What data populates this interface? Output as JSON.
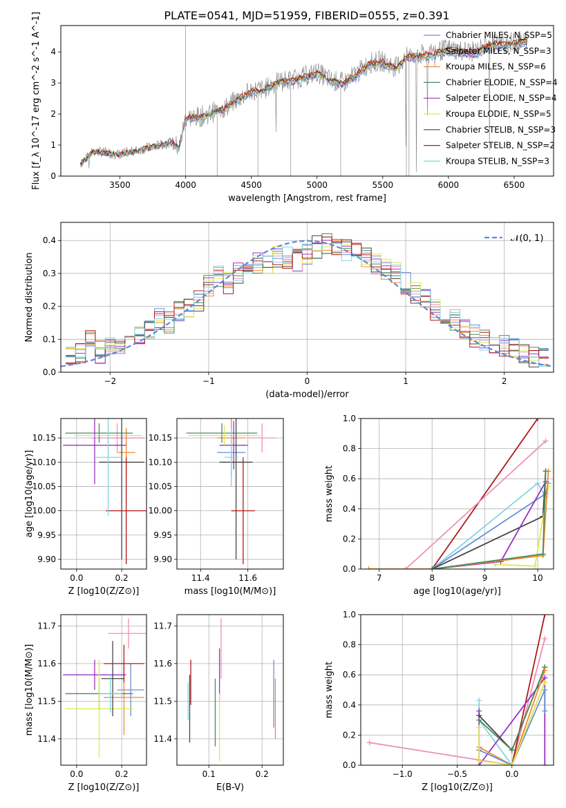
{
  "figure": {
    "title": "PLATE=0541, MJD=51959, FIBERID=0555, z=0.391"
  },
  "legend_entries": [
    {
      "name": "Chabrier MILES, N_SSP=5",
      "color": "#6a8fd6"
    },
    {
      "name": "Salpeter MILES, N_SSP=3",
      "color": "#f08fb8"
    },
    {
      "name": "Kroupa MILES, N_SSP=6",
      "color": "#f08a30"
    },
    {
      "name": "Chabrier ELODIE, N_SSP=4",
      "color": "#4a8a5a"
    },
    {
      "name": "Salpeter ELODIE, N_SSP=4",
      "color": "#9b30c0"
    },
    {
      "name": "Kroupa ELODIE, N_SSP=5",
      "color": "#dfe84a"
    },
    {
      "name": "Chabrier STELIB, N_SSP=3",
      "color": "#444444"
    },
    {
      "name": "Salpeter STELIB, N_SSP=2",
      "color": "#b01818"
    },
    {
      "name": "Kroupa STELIB, N_SSP=3",
      "color": "#7fd6e0"
    }
  ],
  "chart_data": [
    {
      "id": "spectrum",
      "type": "line",
      "xlabel": "wavelength [Angstrom, rest frame]",
      "ylabel": "Flux [f_λ 10^-17 erg cm^-2 s^-1 A^-1]",
      "xlim": [
        3050,
        6800
      ],
      "ylim": [
        0,
        4.85
      ],
      "xticks": [
        3500,
        4000,
        4500,
        5000,
        5500,
        6000,
        6500
      ],
      "yticks": [
        0,
        1,
        2,
        3,
        4
      ],
      "grid": false,
      "legend_position": "top-right",
      "data_curve": {
        "x": [
          3200,
          3300,
          3400,
          3500,
          3600,
          3700,
          3800,
          3900,
          3950,
          4000,
          4100,
          4200,
          4300,
          4400,
          4500,
          4600,
          4700,
          4800,
          4900,
          5000,
          5100,
          5200,
          5300,
          5400,
          5500,
          5600,
          5700,
          5800,
          5900,
          6000,
          6100,
          6200,
          6300,
          6400,
          6500,
          6600
        ],
        "y": [
          0.4,
          0.8,
          0.75,
          0.7,
          0.8,
          0.9,
          1.0,
          1.1,
          0.9,
          1.9,
          1.9,
          2.05,
          2.2,
          2.5,
          2.75,
          2.8,
          3.05,
          3.1,
          3.2,
          3.35,
          3.1,
          3.0,
          3.3,
          3.65,
          3.7,
          3.5,
          3.9,
          3.9,
          4.0,
          4.1,
          4.05,
          4.0,
          4.25,
          4.3,
          4.3,
          4.4
        ]
      }
    },
    {
      "id": "residuals",
      "type": "line",
      "xlabel": "(data-model)/error",
      "ylabel": "Normed distribution",
      "xlim": [
        -2.5,
        2.5
      ],
      "ylim": [
        0,
        0.455
      ],
      "xticks": [
        -2,
        -1,
        0,
        1,
        2
      ],
      "yticks": [
        0.0,
        0.1,
        0.2,
        0.3,
        0.4
      ],
      "grid": true,
      "legend_position": "top-right",
      "legend": [
        "𝒩(0, 1)"
      ],
      "gaussian": {
        "mean": 0,
        "sigma": 1,
        "color": "#5b88d6"
      },
      "hist_bins": [
        -2.4,
        -2.3,
        -2.2,
        -2.1,
        -2.0,
        -1.9,
        -1.8,
        -1.7,
        -1.6,
        -1.5,
        -1.4,
        -1.3,
        -1.2,
        -1.1,
        -1.0,
        -0.9,
        -0.8,
        -0.7,
        -0.6,
        -0.5,
        -0.4,
        -0.3,
        -0.2,
        -0.1,
        0.0,
        0.1,
        0.2,
        0.3,
        0.4,
        0.5,
        0.6,
        0.7,
        0.8,
        0.9,
        1.0,
        1.1,
        1.2,
        1.3,
        1.4,
        1.5,
        1.6,
        1.7,
        1.8,
        1.9,
        2.0,
        2.1,
        2.2,
        2.3,
        2.4
      ],
      "hist_values": [
        0.05,
        0.06,
        0.1,
        0.06,
        0.08,
        0.09,
        0.09,
        0.11,
        0.13,
        0.16,
        0.15,
        0.18,
        0.19,
        0.22,
        0.26,
        0.29,
        0.27,
        0.3,
        0.31,
        0.33,
        0.33,
        0.35,
        0.35,
        0.34,
        0.36,
        0.38,
        0.39,
        0.37,
        0.37,
        0.36,
        0.35,
        0.33,
        0.31,
        0.3,
        0.27,
        0.24,
        0.22,
        0.19,
        0.17,
        0.16,
        0.13,
        0.11,
        0.1,
        0.09,
        0.08,
        0.07,
        0.06,
        0.05,
        0.05
      ]
    },
    {
      "id": "age-vs-Z",
      "type": "scatter",
      "xlabel": "Z [log10(Z/Z⊙)]",
      "ylabel": "age [log10(age/yr)]",
      "xlim": [
        -0.07,
        0.31
      ],
      "ylim": [
        9.88,
        10.19
      ],
      "xticks": [
        0.0,
        0.2
      ],
      "yticks": [
        9.9,
        9.95,
        10.0,
        10.05,
        10.1,
        10.15
      ],
      "grid": true,
      "errorbars": [
        {
          "x": 0.22,
          "y": 10.15,
          "xerr": 0.08,
          "yerr": 0.02,
          "color": "#6a8fd6"
        },
        {
          "x": 0.18,
          "y": 10.15,
          "xerr": 0.12,
          "yerr": 0.03,
          "color": "#f08fb8"
        },
        {
          "x": 0.22,
          "y": 10.12,
          "xerr": 0.04,
          "yerr": 0.05,
          "color": "#f08a30"
        },
        {
          "x": 0.1,
          "y": 10.16,
          "xerr": 0.15,
          "yerr": 0.02,
          "color": "#4a8a5a"
        },
        {
          "x": 0.08,
          "y": 10.135,
          "xerr": 0.14,
          "yerr": 0.08,
          "color": "#9b30c0"
        },
        {
          "x": 0.14,
          "y": 10.155,
          "xerr": 0.15,
          "yerr": 0.03,
          "color": "#dfe84a"
        },
        {
          "x": 0.2,
          "y": 10.1,
          "xerr": 0.1,
          "yerr": 0.2,
          "color": "#444444"
        },
        {
          "x": 0.22,
          "y": 10.0,
          "xerr": 0.09,
          "yerr": 0.11,
          "color": "#b01818"
        },
        {
          "x": 0.14,
          "y": 10.11,
          "xerr": 0.06,
          "yerr": 0.12,
          "color": "#7fd6e0"
        }
      ]
    },
    {
      "id": "age-vs-mass",
      "type": "scatter",
      "xlabel": "mass [log10(M/M⊙)]",
      "ylabel": "",
      "xlim": [
        11.3,
        11.75
      ],
      "ylim": [
        9.88,
        10.19
      ],
      "xticks": [
        11.4,
        11.6
      ],
      "yticks": [
        9.9,
        9.95,
        10.0,
        10.05,
        10.1,
        10.15
      ],
      "grid": true,
      "errorbars": [
        {
          "x": 11.53,
          "y": 10.12,
          "xerr": 0.06,
          "yerr": 0.05,
          "color": "#6a8fd6"
        },
        {
          "x": 11.66,
          "y": 10.15,
          "xerr": 0.06,
          "yerr": 0.03,
          "color": "#f08fb8"
        },
        {
          "x": 11.53,
          "y": 10.15,
          "xerr": 0.06,
          "yerr": 0.04,
          "color": "#f08a30"
        },
        {
          "x": 11.49,
          "y": 10.16,
          "xerr": 0.15,
          "yerr": 0.02,
          "color": "#4a8a5a"
        },
        {
          "x": 11.54,
          "y": 10.135,
          "xerr": 0.06,
          "yerr": 0.05,
          "color": "#9b30c0"
        },
        {
          "x": 11.5,
          "y": 10.155,
          "xerr": 0.15,
          "yerr": 0.02,
          "color": "#dfe84a"
        },
        {
          "x": 11.55,
          "y": 10.1,
          "xerr": 0.07,
          "yerr": 0.2,
          "color": "#444444"
        },
        {
          "x": 11.58,
          "y": 10.0,
          "xerr": 0.05,
          "yerr": 0.11,
          "color": "#b01818"
        },
        {
          "x": 11.53,
          "y": 10.11,
          "xerr": 0.03,
          "yerr": 0.06,
          "color": "#7fd6e0"
        }
      ]
    },
    {
      "id": "mass-weight-vs-age",
      "type": "line",
      "xlabel": "age [log10(age/yr)]",
      "ylabel": "mass weight",
      "xlim": [
        6.65,
        10.3
      ],
      "ylim": [
        0,
        1.0
      ],
      "xticks": [
        7,
        8,
        9,
        10
      ],
      "yticks": [
        0.0,
        0.2,
        0.4,
        0.6,
        0.8,
        1.0
      ],
      "grid": true,
      "series": [
        {
          "color": "#b01818",
          "x": [
            8.0,
            10.0
          ],
          "y": [
            0.0,
            1.0
          ]
        },
        {
          "color": "#f08fb8",
          "x": [
            7.5,
            10.15
          ],
          "y": [
            0.0,
            0.85
          ]
        },
        {
          "color": "#7fd6e0",
          "x": [
            8.0,
            10.0,
            10.15
          ],
          "y": [
            0.0,
            0.57,
            0.48
          ]
        },
        {
          "color": "#6a8fd6",
          "x": [
            8.0,
            10.15,
            10.2
          ],
          "y": [
            0.0,
            0.5,
            0.57
          ]
        },
        {
          "color": "#444444",
          "x": [
            8.0,
            10.1,
            10.15
          ],
          "y": [
            0.0,
            0.35,
            0.65
          ]
        },
        {
          "color": "#9b30c0",
          "x": [
            8.0,
            9.3,
            10.15
          ],
          "y": [
            0.0,
            0.05,
            0.58
          ]
        },
        {
          "color": "#dfe84a",
          "x": [
            9.2,
            9.95,
            10.2
          ],
          "y": [
            0.03,
            0.02,
            0.55
          ]
        },
        {
          "color": "#f08a30",
          "x": [
            6.8,
            8.0,
            10.1,
            10.2
          ],
          "y": [
            0.0,
            0.0,
            0.09,
            0.65
          ]
        },
        {
          "color": "#4a8a5a",
          "x": [
            8.0,
            10.1,
            10.15
          ],
          "y": [
            0.0,
            0.1,
            0.65
          ]
        }
      ]
    },
    {
      "id": "mass-vs-Z",
      "type": "scatter",
      "xlabel": "Z [log10(Z/Z⊙)]",
      "ylabel": "mass [log10(M/M⊙)]",
      "xlim": [
        -0.07,
        0.31
      ],
      "ylim": [
        11.33,
        11.73
      ],
      "xticks": [
        0.0,
        0.2
      ],
      "yticks": [
        11.4,
        11.5,
        11.6,
        11.7
      ],
      "grid": true,
      "errorbars": [
        {
          "x": 0.24,
          "y": 11.53,
          "xerr": 0.06,
          "yerr": 0.07,
          "color": "#6a8fd6"
        },
        {
          "x": 0.23,
          "y": 11.68,
          "xerr": 0.09,
          "yerr": 0.04,
          "color": "#f08fb8"
        },
        {
          "x": 0.21,
          "y": 11.51,
          "xerr": 0.09,
          "yerr": 0.1,
          "color": "#f08a30"
        },
        {
          "x": 0.1,
          "y": 11.52,
          "xerr": 0.15,
          "yerr": 0.04,
          "color": "#4a8a5a"
        },
        {
          "x": 0.08,
          "y": 11.57,
          "xerr": 0.14,
          "yerr": 0.04,
          "color": "#9b30c0"
        },
        {
          "x": 0.1,
          "y": 11.48,
          "xerr": 0.15,
          "yerr": 0.13,
          "color": "#dfe84a"
        },
        {
          "x": 0.16,
          "y": 11.56,
          "xerr": 0.05,
          "yerr": 0.1,
          "color": "#444444"
        },
        {
          "x": 0.21,
          "y": 11.6,
          "xerr": 0.09,
          "yerr": 0.05,
          "color": "#b01818"
        },
        {
          "x": 0.15,
          "y": 11.52,
          "xerr": 0.05,
          "yerr": 0.05,
          "color": "#7fd6e0"
        }
      ]
    },
    {
      "id": "mass-vs-EBV",
      "type": "scatter",
      "xlabel": "E(B-V)",
      "ylabel": "",
      "xlim": [
        0.04,
        0.24
      ],
      "ylim": [
        11.33,
        11.73
      ],
      "xticks": [
        0.1,
        0.2
      ],
      "yticks": [
        11.4,
        11.5,
        11.6,
        11.7
      ],
      "grid": true,
      "errorbars": [
        {
          "x": 0.222,
          "y": 11.52,
          "xerr": 0.0,
          "yerr": 0.09,
          "color": "#6a8fd6"
        },
        {
          "x": 0.123,
          "y": 11.64,
          "xerr": 0.0,
          "yerr": 0.08,
          "color": "#f08fb8"
        },
        {
          "x": 0.225,
          "y": 11.48,
          "xerr": 0.0,
          "yerr": 0.08,
          "color": "#f08a30"
        },
        {
          "x": 0.112,
          "y": 11.47,
          "xerr": 0.0,
          "yerr": 0.09,
          "color": "#4a8a5a"
        },
        {
          "x": 0.12,
          "y": 11.57,
          "xerr": 0.0,
          "yerr": 0.07,
          "color": "#9b30c0"
        },
        {
          "x": 0.12,
          "y": 11.43,
          "xerr": 0.0,
          "yerr": 0.09,
          "color": "#dfe84a"
        },
        {
          "x": 0.064,
          "y": 11.48,
          "xerr": 0.0,
          "yerr": 0.09,
          "color": "#444444"
        },
        {
          "x": 0.066,
          "y": 11.55,
          "xerr": 0.0,
          "yerr": 0.06,
          "color": "#b01818"
        },
        {
          "x": 0.061,
          "y": 11.5,
          "xerr": 0.0,
          "yerr": 0.05,
          "color": "#7fd6e0"
        }
      ]
    },
    {
      "id": "mass-weight-vs-Z",
      "type": "line",
      "xlabel": "Z [log10(Z/Z⊙)]",
      "ylabel": "mass weight",
      "xlim": [
        -1.38,
        0.38
      ],
      "ylim": [
        0,
        1.0
      ],
      "xticks": [
        -1.0,
        -0.5,
        0.0
      ],
      "yticks": [
        0.0,
        0.2,
        0.4,
        0.6,
        0.8,
        1.0
      ],
      "grid": true,
      "series": [
        {
          "color": "#f08fb8",
          "x": [
            -1.3,
            0.0,
            0.3
          ],
          "y": [
            0.15,
            0.0,
            0.84
          ]
        },
        {
          "color": "#b01818",
          "x": [
            0.0,
            0.3
          ],
          "y": [
            0.0,
            1.0
          ]
        },
        {
          "color": "#7fd6e0",
          "x": [
            -0.3,
            -0.3,
            0.0,
            0.3
          ],
          "y": [
            0.43,
            0.3,
            0.0,
            0.55
          ]
        },
        {
          "color": "#9b30c0",
          "x": [
            -0.3,
            -0.3,
            0.3,
            0.3
          ],
          "y": [
            0.36,
            0.0,
            0.58,
            0.0
          ]
        },
        {
          "color": "#444444",
          "x": [
            -0.3,
            0.0,
            0.3
          ],
          "y": [
            0.33,
            0.1,
            0.65
          ]
        },
        {
          "color": "#4a8a5a",
          "x": [
            -0.3,
            0.0,
            0.3
          ],
          "y": [
            0.3,
            0.1,
            0.65
          ]
        },
        {
          "color": "#f08a30",
          "x": [
            -0.3,
            0.0,
            0.3
          ],
          "y": [
            0.12,
            0.0,
            0.63
          ]
        },
        {
          "color": "#6a8fd6",
          "x": [
            -0.3,
            0.0,
            0.3,
            0.3
          ],
          "y": [
            0.1,
            0.0,
            0.5,
            0.36
          ]
        },
        {
          "color": "#dfe84a",
          "x": [
            -0.3,
            -0.3,
            0.0,
            0.3
          ],
          "y": [
            0.25,
            0.03,
            0.0,
            0.55
          ]
        }
      ]
    }
  ]
}
